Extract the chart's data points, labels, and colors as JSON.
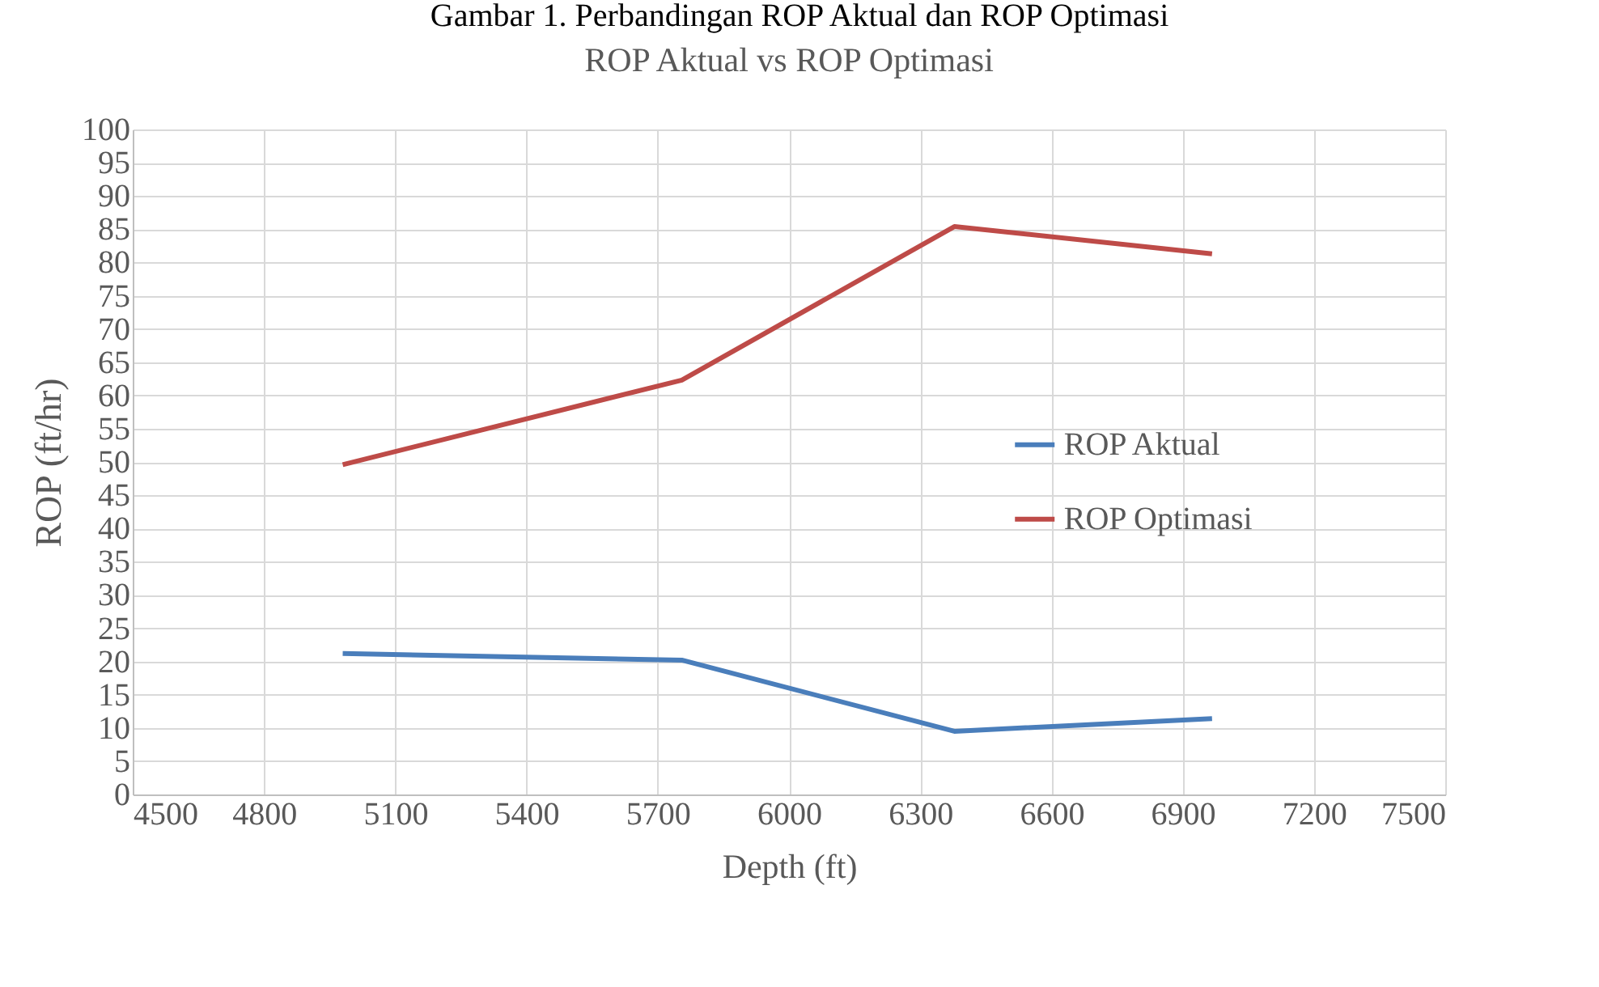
{
  "chart_data": {
    "type": "line",
    "title": "ROP Aktual vs ROP Optimasi",
    "annotations": [
      "Gambar 1. Perbandingan ROP Aktual dan ROP Optimasi"
    ],
    "xlabel": "Depth (ft)",
    "ylabel": "ROP (ft/hr)",
    "x": [
      4980,
      5755,
      6378,
      6967
    ],
    "series": [
      {
        "name": "ROP Aktual",
        "color": "#4a7ebb",
        "values": [
          21.2,
          20.2,
          9.5,
          11.4
        ]
      },
      {
        "name": "ROP Optimasi",
        "color": "#be4b48",
        "values": [
          49.6,
          62.3,
          85.4,
          81.3
        ]
      }
    ],
    "xlim": [
      4500,
      7500
    ],
    "xticks": [
      4500,
      4800,
      5100,
      5400,
      5700,
      6000,
      6300,
      6600,
      6900,
      7200,
      7500
    ],
    "ylim": [
      0,
      100
    ],
    "yticks": [
      0,
      5,
      10,
      15,
      20,
      25,
      30,
      35,
      40,
      45,
      50,
      55,
      60,
      65,
      70,
      75,
      80,
      85,
      90,
      95,
      100
    ],
    "grid": true,
    "legend": "right",
    "marker": "none",
    "line_style": "solid"
  }
}
